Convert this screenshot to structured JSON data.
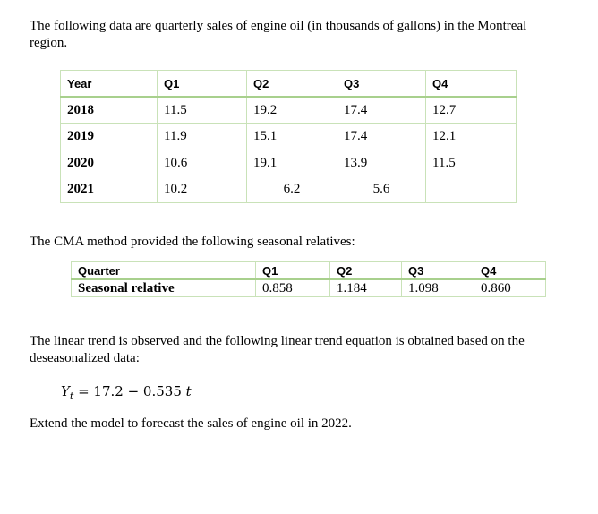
{
  "intro": "The following data are quarterly sales of engine oil (in thousands of gallons) in the Montreal region.",
  "sales_table": {
    "headers": [
      "Year",
      "Q1",
      "Q2",
      "Q3",
      "Q4"
    ],
    "rows": [
      [
        "2018",
        "11.5",
        "19.2",
        "17.4",
        "12.7"
      ],
      [
        "2019",
        "11.9",
        "15.1",
        "17.4",
        "12.1"
      ],
      [
        "2020",
        "10.6",
        "19.1",
        "13.9",
        "11.5"
      ],
      [
        "2021",
        "10.2",
        "6.2",
        "5.6",
        ""
      ]
    ]
  },
  "cma_text": "The CMA method provided the following seasonal relatives:",
  "seasonal_table": {
    "headers": [
      "Quarter",
      "Q1",
      "Q2",
      "Q3",
      "Q4"
    ],
    "row": [
      "Seasonal relative",
      "0.858",
      "1.184",
      "1.098",
      "0.860"
    ]
  },
  "trend_text": "The linear trend is observed and the following linear trend equation is obtained based on the deseasonalized data:",
  "equation": {
    "lhs": "Y",
    "sub": "t",
    "rhs": " = 17.2 − 0.535 ",
    "var": "t"
  },
  "question": "Extend the model to forecast the sales of engine oil in 2022."
}
